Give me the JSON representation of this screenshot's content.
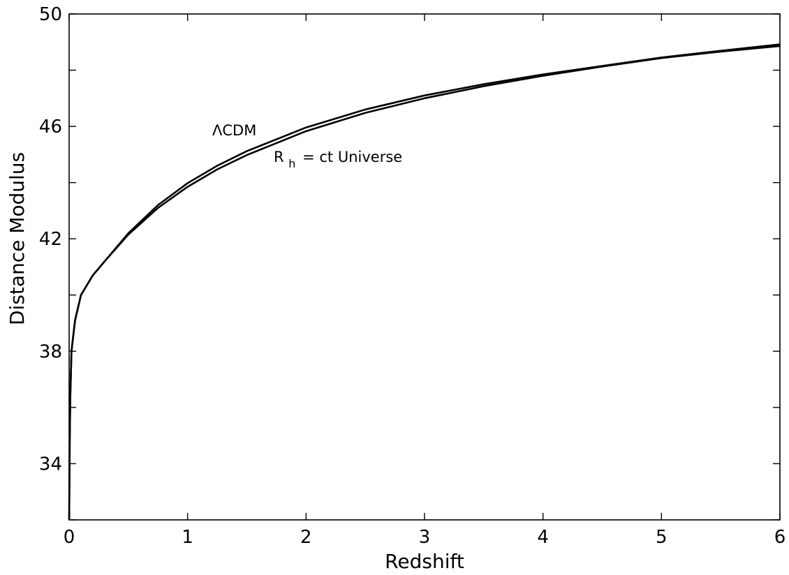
{
  "chart_data": {
    "type": "line",
    "title": "",
    "xlabel": "Redshift",
    "ylabel": "Distance Modulus",
    "xlim": [
      0,
      6
    ],
    "ylim": [
      32,
      50
    ],
    "xticks": [
      0,
      1,
      2,
      3,
      4,
      5,
      6
    ],
    "xtick_labels": [
      "0",
      "1",
      "2",
      "3",
      "4",
      "5",
      "6"
    ],
    "yticks": [
      34,
      38,
      42,
      46,
      50
    ],
    "ytick_labels": [
      "34",
      "38",
      "42",
      "46",
      "50"
    ],
    "grid": false,
    "line_color": "#000000",
    "series": [
      {
        "name": "ΛCDM",
        "x": [
          0.001,
          0.005,
          0.01,
          0.02,
          0.05,
          0.1,
          0.2,
          0.3,
          0.5,
          0.75,
          1.0,
          1.25,
          1.5,
          2.0,
          2.5,
          3.0,
          3.5,
          4.0,
          4.5,
          5.0,
          5.5,
          6.0
        ],
        "y": [
          32.4,
          34.8,
          36.4,
          38.0,
          39.1,
          40.0,
          40.7,
          41.2,
          42.2,
          43.2,
          43.98,
          44.6,
          45.12,
          45.96,
          46.6,
          47.1,
          47.5,
          47.85,
          48.15,
          48.45,
          48.69,
          48.92
        ]
      },
      {
        "name": "R_h = ct Universe",
        "x": [
          0.001,
          0.005,
          0.01,
          0.02,
          0.05,
          0.1,
          0.2,
          0.3,
          0.5,
          0.75,
          1.0,
          1.25,
          1.5,
          2.0,
          2.5,
          3.0,
          3.5,
          4.0,
          4.5,
          5.0,
          5.5,
          6.0
        ],
        "y": [
          32.4,
          34.8,
          36.4,
          38.0,
          39.1,
          40.0,
          40.7,
          41.2,
          42.15,
          43.1,
          43.85,
          44.47,
          44.98,
          45.83,
          46.48,
          47.0,
          47.43,
          47.8,
          48.13,
          48.43,
          48.66,
          48.86
        ]
      }
    ],
    "annotations": [
      {
        "main": "ΛCDM",
        "sub": ""
      },
      {
        "main": "R",
        "sub": "h",
        "rest": "= ct  Universe"
      }
    ]
  }
}
